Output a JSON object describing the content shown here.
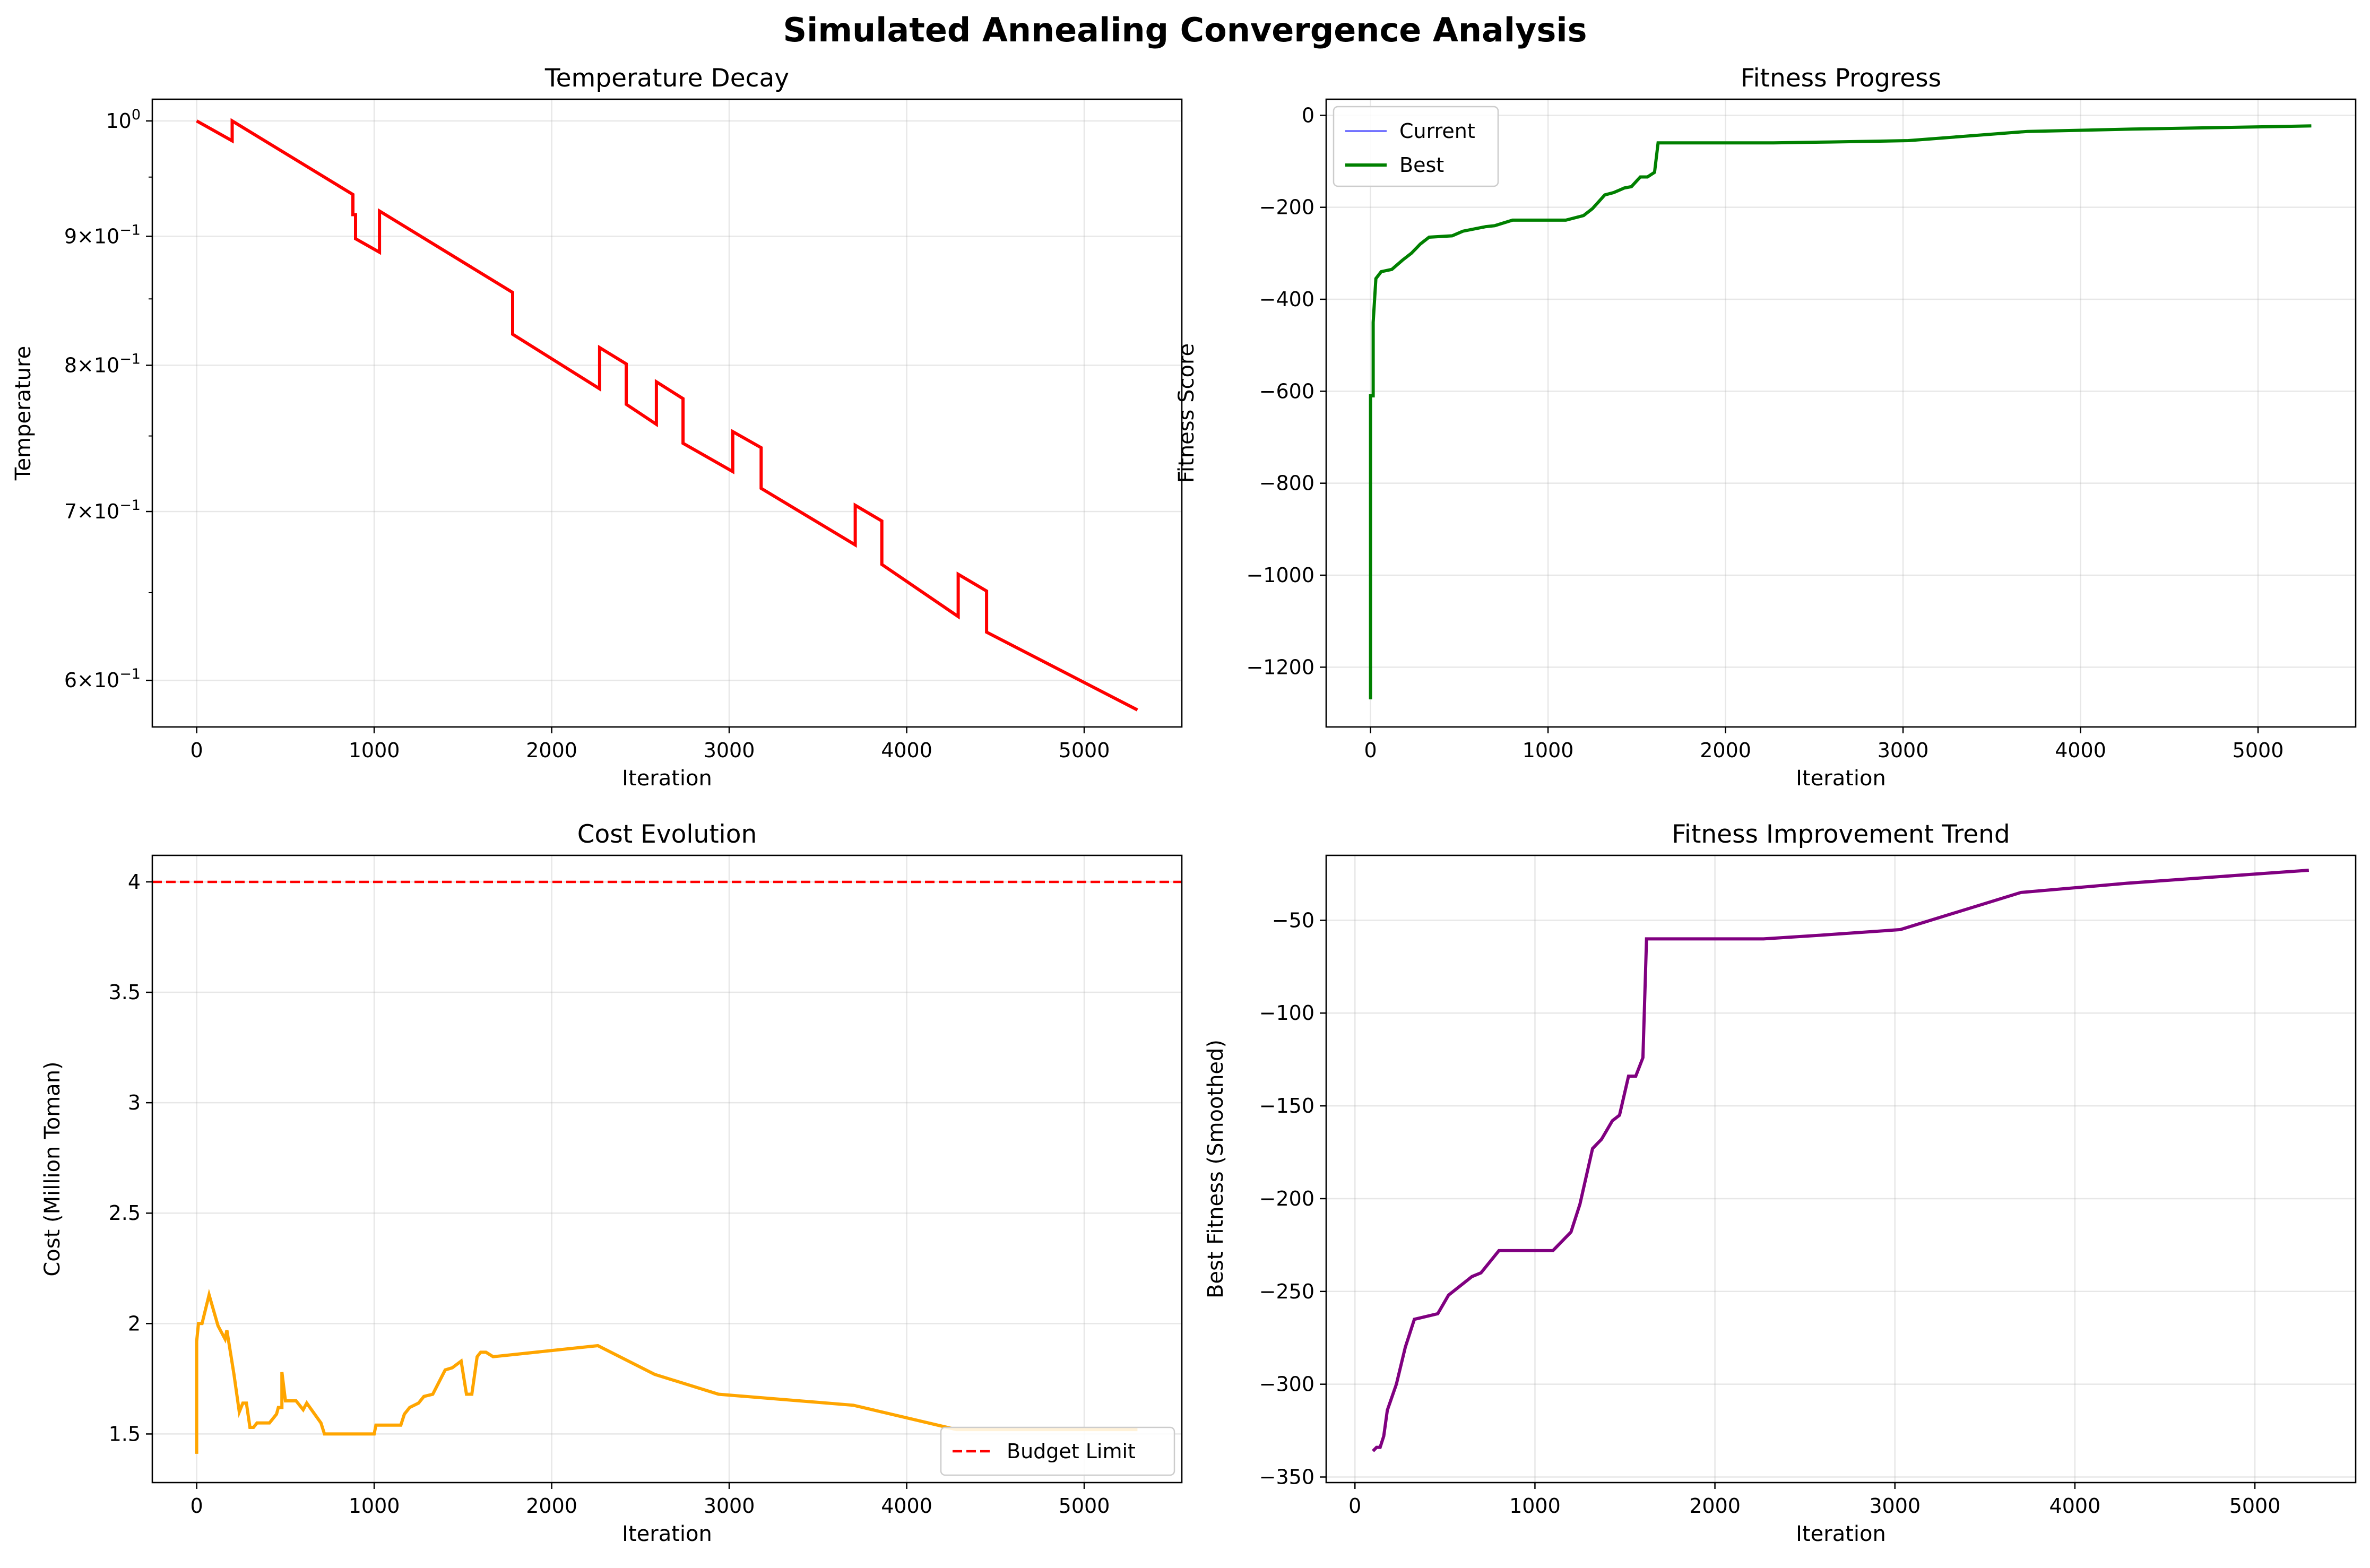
{
  "suptitle": "Simulated Annealing Convergence Analysis",
  "chart_data": [
    {
      "id": "temperature",
      "type": "line",
      "title": "Temperature Decay",
      "xlabel": "Iteration",
      "ylabel": "Temperature",
      "yscale": "log",
      "xlim": [
        -250,
        5550
      ],
      "ylim": [
        0.575,
        1.02
      ],
      "xticks": [
        0,
        1000,
        2000,
        3000,
        4000,
        5000
      ],
      "yticks": [
        {
          "value": 1.0,
          "base": "10",
          "exp": "0"
        },
        {
          "value": 0.9,
          "base": "9×10",
          "exp": "−1"
        },
        {
          "value": 0.8,
          "base": "8×10",
          "exp": "−1"
        },
        {
          "value": 0.7,
          "base": "7×10",
          "exp": "−1"
        },
        {
          "value": 0.6,
          "base": "6×10",
          "exp": "−1"
        }
      ],
      "grid": true,
      "color": "#ff0000",
      "series": [
        {
          "x": [
            0,
            200,
            200,
            880,
            880,
            895,
            895,
            1030,
            1030,
            1780,
            1780,
            2270,
            2270,
            2420,
            2420,
            2590,
            2590,
            2740,
            2740,
            3020,
            3020,
            3180,
            3180,
            3710,
            3710,
            3860,
            3860,
            4290,
            4290,
            4450,
            4450,
            5300
          ],
          "y": [
            1.0,
            0.982,
            1.0,
            0.935,
            0.918,
            0.918,
            0.898,
            0.887,
            0.921,
            0.855,
            0.823,
            0.783,
            0.813,
            0.801,
            0.772,
            0.758,
            0.788,
            0.776,
            0.745,
            0.726,
            0.753,
            0.742,
            0.715,
            0.679,
            0.704,
            0.694,
            0.667,
            0.636,
            0.661,
            0.651,
            0.627,
            0.584
          ]
        }
      ]
    },
    {
      "id": "fitness",
      "type": "line",
      "title": "Fitness Progress",
      "xlabel": "Iteration",
      "ylabel": "Fitness Score",
      "xlim": [
        -250,
        5550
      ],
      "ylim": [
        -1330,
        35
      ],
      "xticks": [
        0,
        1000,
        2000,
        3000,
        4000,
        5000
      ],
      "yticks": [
        0,
        -200,
        -400,
        -600,
        -800,
        -1000,
        -1200
      ],
      "grid": true,
      "legend_position": "top-left",
      "series": [
        {
          "name": "Current",
          "color": "#0000ff",
          "x": [
            0,
            0,
            15,
            15,
            30,
            60,
            120,
            180,
            230,
            280,
            330,
            460,
            520,
            650,
            700,
            800,
            1100,
            1200,
            1250,
            1320,
            1370,
            1430,
            1470,
            1520,
            1560,
            1600,
            1620,
            2270,
            2590,
            3030,
            3700,
            4290,
            5300
          ],
          "y": [
            -1270,
            -610,
            -610,
            -450,
            -355,
            -340,
            -335,
            -315,
            -300,
            -280,
            -265,
            -262,
            -252,
            -242,
            -240,
            -228,
            -228,
            -218,
            -203,
            -173,
            -168,
            -158,
            -155,
            -134,
            -134,
            -124,
            -60,
            -60,
            -58,
            -55,
            -35,
            -30,
            -23
          ]
        },
        {
          "name": "Best",
          "color": "#008000",
          "x": [
            0,
            0,
            15,
            15,
            30,
            60,
            120,
            180,
            230,
            280,
            330,
            460,
            520,
            650,
            700,
            800,
            1100,
            1200,
            1250,
            1320,
            1370,
            1430,
            1470,
            1520,
            1560,
            1600,
            1620,
            2270,
            2590,
            3030,
            3700,
            4290,
            5300
          ],
          "y": [
            -1270,
            -610,
            -610,
            -450,
            -355,
            -340,
            -335,
            -315,
            -300,
            -280,
            -265,
            -262,
            -252,
            -242,
            -240,
            -228,
            -228,
            -218,
            -203,
            -173,
            -168,
            -158,
            -155,
            -134,
            -134,
            -124,
            -60,
            -60,
            -58,
            -55,
            -35,
            -30,
            -23
          ]
        }
      ]
    },
    {
      "id": "cost",
      "type": "line",
      "title": "Cost Evolution",
      "xlabel": "Iteration",
      "ylabel": "Cost (Million Toman)",
      "xlim": [
        -250,
        5550
      ],
      "ylim": [
        1.28,
        4.12
      ],
      "xticks": [
        0,
        1000,
        2000,
        3000,
        4000,
        5000
      ],
      "yticks": [
        1.5,
        2.0,
        2.5,
        3.0,
        3.5,
        4.0
      ],
      "grid": true,
      "legend_position": "lower-right",
      "budget": {
        "name": "Budget Limit",
        "value": 4.0,
        "color": "#ff0000"
      },
      "color": "#ffa500",
      "series": [
        {
          "x": [
            0,
            0,
            10,
            30,
            70,
            120,
            160,
            170,
            210,
            240,
            260,
            280,
            300,
            320,
            340,
            410,
            450,
            460,
            480,
            480,
            500,
            560,
            600,
            620,
            700,
            720,
            1000,
            1010,
            1150,
            1170,
            1200,
            1250,
            1280,
            1330,
            1400,
            1440,
            1490,
            1520,
            1550,
            1580,
            1600,
            1630,
            1670,
            2260,
            2580,
            2940,
            3700,
            4280,
            5300
          ],
          "y": [
            1.41,
            1.92,
            2.0,
            2.0,
            2.13,
            1.99,
            1.93,
            1.97,
            1.77,
            1.6,
            1.64,
            1.64,
            1.53,
            1.53,
            1.55,
            1.55,
            1.59,
            1.62,
            1.62,
            1.78,
            1.65,
            1.65,
            1.61,
            1.64,
            1.55,
            1.5,
            1.5,
            1.54,
            1.54,
            1.59,
            1.62,
            1.64,
            1.67,
            1.68,
            1.79,
            1.8,
            1.83,
            1.68,
            1.68,
            1.85,
            1.87,
            1.87,
            1.85,
            1.9,
            1.77,
            1.68,
            1.63,
            1.52,
            1.52
          ]
        }
      ]
    },
    {
      "id": "trend",
      "type": "line",
      "title": "Fitness Improvement Trend",
      "xlabel": "Iteration",
      "ylabel": "Best Fitness (Smoothed)",
      "xlim": [
        -160,
        5560
      ],
      "ylim": [
        -353,
        -15
      ],
      "xticks": [
        0,
        1000,
        2000,
        3000,
        4000,
        5000
      ],
      "yticks": [
        -50,
        -100,
        -150,
        -200,
        -250,
        -300,
        -350
      ],
      "grid": true,
      "color": "#800080",
      "series": [
        {
          "x": [
            100,
            120,
            140,
            160,
            180,
            230,
            280,
            330,
            460,
            520,
            650,
            700,
            800,
            1100,
            1200,
            1250,
            1320,
            1370,
            1430,
            1470,
            1520,
            1560,
            1600,
            1620,
            2270,
            2590,
            3030,
            3700,
            4290,
            5300
          ],
          "y": [
            -336,
            -334,
            -334,
            -328,
            -314,
            -300,
            -280,
            -265,
            -262,
            -252,
            -242,
            -240,
            -228,
            -228,
            -218,
            -203,
            -173,
            -168,
            -158,
            -155,
            -134,
            -134,
            -124,
            -60,
            -60,
            -58,
            -55,
            -35,
            -30,
            -23
          ]
        }
      ]
    }
  ]
}
